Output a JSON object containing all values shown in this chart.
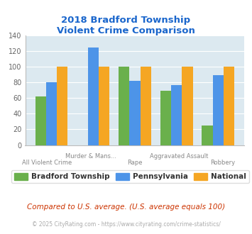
{
  "title": "2018 Bradford Township\nViolent Crime Comparison",
  "title_color": "#1a66cc",
  "categories": [
    "All Violent Crime",
    "Murder & Mans...",
    "Rape",
    "Aggravated Assault",
    "Robbery"
  ],
  "x_labels_top": [
    "",
    "Murder & Mans...",
    "",
    "Aggravated Assault",
    ""
  ],
  "x_labels_bot": [
    "All Violent Crime",
    "",
    "Rape",
    "",
    "Robbery"
  ],
  "bradford": [
    62,
    0,
    100,
    69,
    25
  ],
  "pennsylvania": [
    80,
    124,
    82,
    76,
    89
  ],
  "national": [
    100,
    100,
    100,
    100,
    100
  ],
  "bradford_color": "#6ab04c",
  "pennsylvania_color": "#4d94e8",
  "national_color": "#f5a623",
  "ylim": [
    0,
    140
  ],
  "yticks": [
    0,
    20,
    40,
    60,
    80,
    100,
    120,
    140
  ],
  "background_color": "#dce9f0",
  "legend_labels": [
    "Bradford Township",
    "Pennsylvania",
    "National"
  ],
  "footnote1": "Compared to U.S. average. (U.S. average equals 100)",
  "footnote2": "© 2025 CityRating.com - https://www.cityrating.com/crime-statistics/",
  "footnote1_color": "#cc3300",
  "footnote2_color": "#aaaaaa"
}
